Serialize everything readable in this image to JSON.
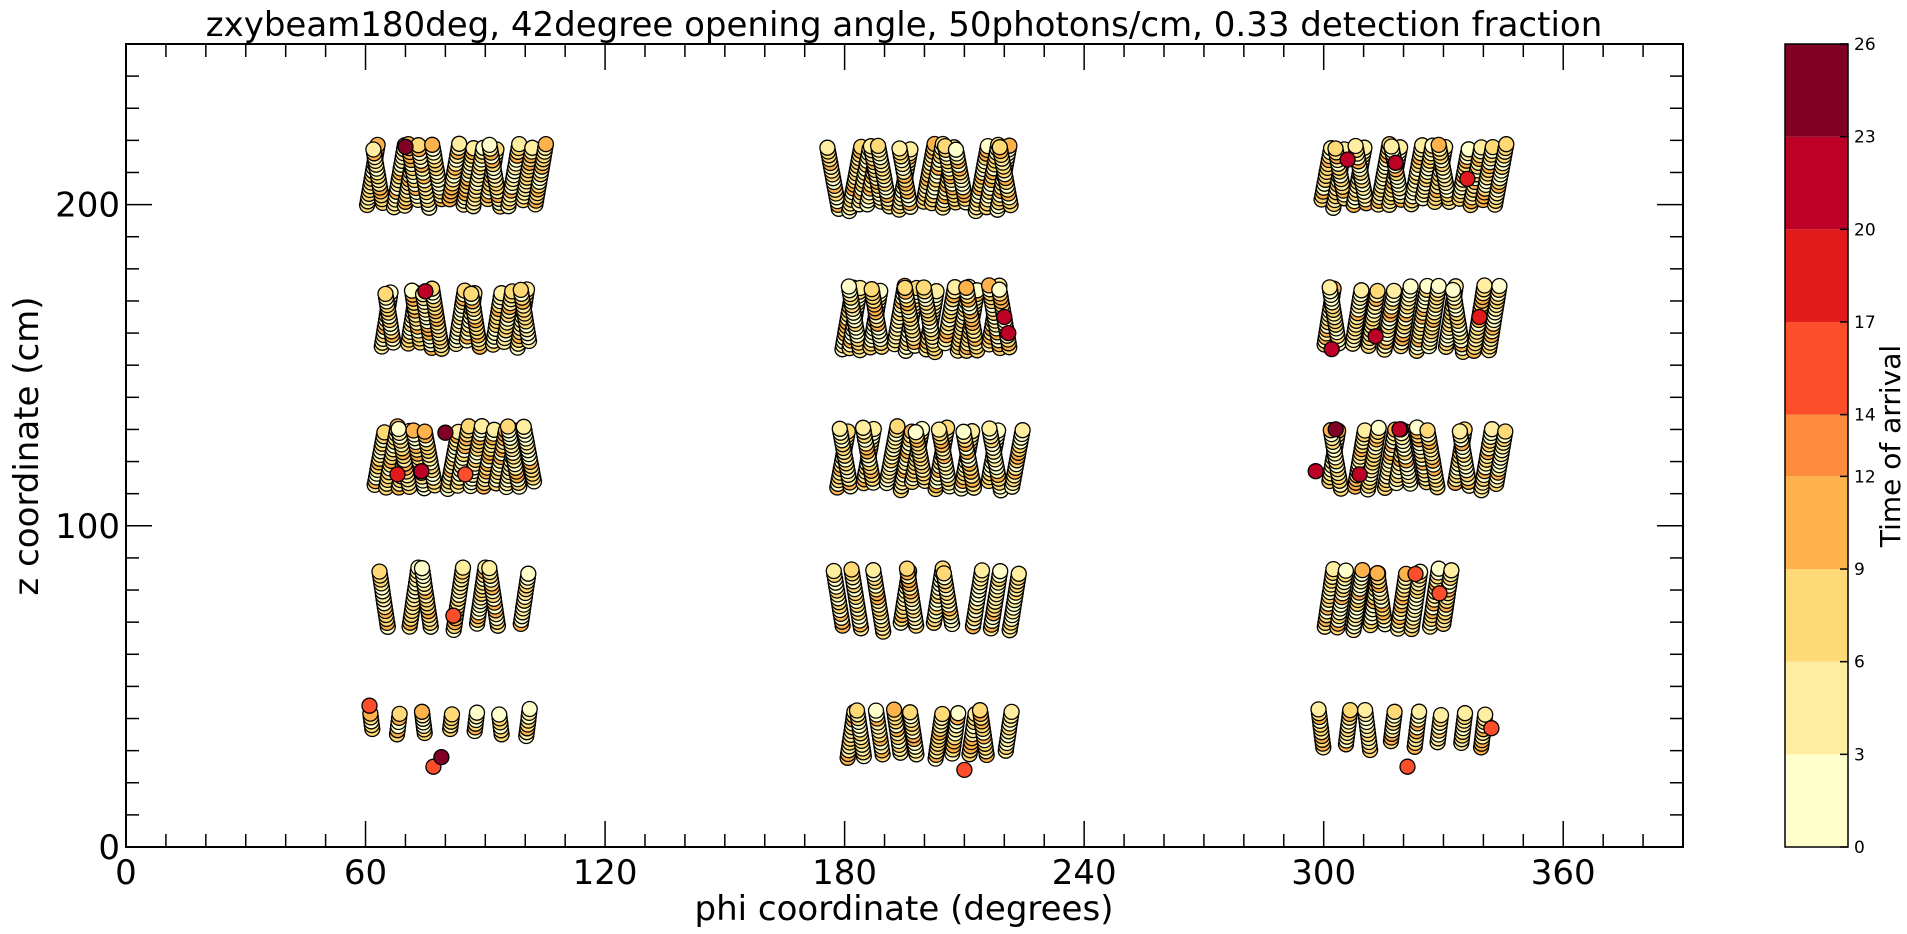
{
  "chart_data": {
    "type": "scatter",
    "title": "zxybeam180deg, 42degree opening angle, 50photons/cm, 0.33 detection fraction",
    "xlabel": "phi coordinate (degrees)",
    "ylabel": "z coordinate (cm)",
    "xlim": [
      0,
      390
    ],
    "ylim": [
      0,
      250
    ],
    "x_ticks": [
      0,
      60,
      120,
      180,
      240,
      300,
      360
    ],
    "y_ticks": [
      0,
      100,
      200
    ],
    "x_minor_step": 10,
    "y_minor_step": 10,
    "grid": false,
    "colorbar": {
      "label": "Time of arrival",
      "bounds": [
        0,
        3,
        6,
        9,
        12,
        14,
        17,
        20,
        23,
        26
      ],
      "tick_labels": [
        "0",
        "3",
        "6",
        "9",
        "12",
        "14",
        "17",
        "20",
        "23",
        "26"
      ],
      "colors": [
        "#ffffcc",
        "#ffeda0",
        "#fed976",
        "#feb24c",
        "#fd8d3c",
        "#fc4e2a",
        "#e31a1c",
        "#bd0026",
        "#800026"
      ]
    },
    "clusters": [
      {
        "phi_start": 61,
        "phi_end": 102,
        "z_bottom": 199,
        "z_top": 219,
        "columns": 15,
        "tilt": 1.4
      },
      {
        "phi_start": 64,
        "phi_end": 101,
        "z_bottom": 155,
        "z_top": 174,
        "columns": 13,
        "tilt": 1.3
      },
      {
        "phi_start": 62,
        "phi_end": 102,
        "z_bottom": 111,
        "z_top": 131,
        "columns": 14,
        "tilt": 1.5
      },
      {
        "phi_start": 65,
        "phi_end": 99,
        "z_bottom": 67,
        "z_top": 87,
        "columns": 7,
        "tilt": 1.2
      },
      {
        "phi_start": 62,
        "phi_end": 100,
        "z_bottom": 34,
        "z_top": 43,
        "columns": 7,
        "tilt": 1.0
      },
      {
        "phi_start": 178,
        "phi_end": 221,
        "z_bottom": 198,
        "z_top": 219,
        "columns": 17,
        "tilt": 1.5
      },
      {
        "phi_start": 179,
        "phi_end": 221,
        "z_bottom": 154,
        "z_top": 175,
        "columns": 17,
        "tilt": 1.4
      },
      {
        "phi_start": 178,
        "phi_end": 222,
        "z_bottom": 111,
        "z_top": 131,
        "columns": 15,
        "tilt": 1.5
      },
      {
        "phi_start": 180,
        "phi_end": 221,
        "z_bottom": 67,
        "z_top": 87,
        "columns": 10,
        "tilt": 1.3
      },
      {
        "phi_start": 181,
        "phi_end": 220,
        "z_bottom": 27,
        "z_top": 43,
        "columns": 10,
        "tilt": 1.2
      },
      {
        "phi_start": 299,
        "phi_end": 343,
        "z_bottom": 199,
        "z_top": 219,
        "columns": 16,
        "tilt": 1.5
      },
      {
        "phi_start": 300,
        "phi_end": 342,
        "z_bottom": 154,
        "z_top": 175,
        "columns": 12,
        "tilt": 1.3
      },
      {
        "phi_start": 301,
        "phi_end": 343,
        "z_bottom": 111,
        "z_top": 131,
        "columns": 13,
        "tilt": 1.4
      },
      {
        "phi_start": 300,
        "phi_end": 330,
        "z_bottom": 67,
        "z_top": 87,
        "columns": 9,
        "tilt": 1.2
      },
      {
        "phi_start": 300,
        "phi_end": 340,
        "z_bottom": 30,
        "z_top": 43,
        "columns": 8,
        "tilt": 1.0
      }
    ],
    "highlight_points": [
      {
        "phi": 70,
        "z": 218,
        "t": 24
      },
      {
        "phi": 75,
        "z": 173,
        "t": 22
      },
      {
        "phi": 68,
        "z": 116,
        "t": 19
      },
      {
        "phi": 74,
        "z": 117,
        "t": 20
      },
      {
        "phi": 80,
        "z": 129,
        "t": 23
      },
      {
        "phi": 85,
        "z": 116,
        "t": 15
      },
      {
        "phi": 82,
        "z": 72,
        "t": 15
      },
      {
        "phi": 61,
        "z": 44,
        "t": 15
      },
      {
        "phi": 77,
        "z": 25,
        "t": 14
      },
      {
        "phi": 79,
        "z": 28,
        "t": 25
      },
      {
        "phi": 220,
        "z": 165,
        "t": 20
      },
      {
        "phi": 221,
        "z": 160,
        "t": 21
      },
      {
        "phi": 210,
        "z": 24,
        "t": 15
      },
      {
        "phi": 306,
        "z": 214,
        "t": 21
      },
      {
        "phi": 318,
        "z": 213,
        "t": 21
      },
      {
        "phi": 336,
        "z": 208,
        "t": 18
      },
      {
        "phi": 302,
        "z": 155,
        "t": 20
      },
      {
        "phi": 313,
        "z": 159,
        "t": 20
      },
      {
        "phi": 339,
        "z": 165,
        "t": 17
      },
      {
        "phi": 303,
        "z": 130,
        "t": 24
      },
      {
        "phi": 298,
        "z": 117,
        "t": 20
      },
      {
        "phi": 309,
        "z": 116,
        "t": 21
      },
      {
        "phi": 319,
        "z": 130,
        "t": 20
      },
      {
        "phi": 323,
        "z": 85,
        "t": 15
      },
      {
        "phi": 329,
        "z": 79,
        "t": 14
      },
      {
        "phi": 321,
        "z": 25,
        "t": 15
      },
      {
        "phi": 342,
        "z": 37,
        "t": 14
      }
    ]
  }
}
